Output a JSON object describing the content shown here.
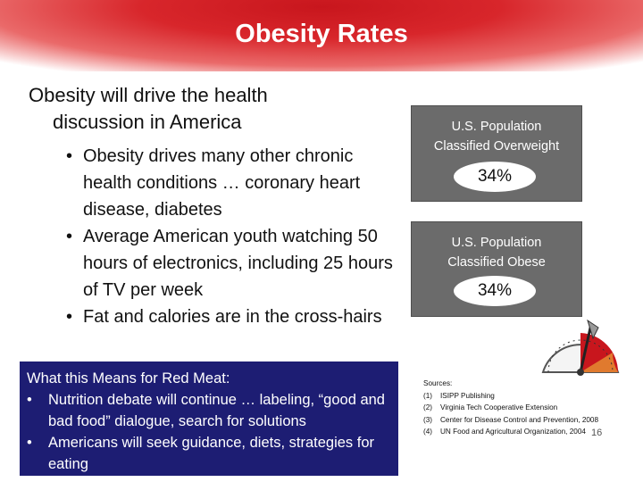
{
  "title": "Obesity Rates",
  "main_point": {
    "line1": "Obesity will drive the health",
    "line2": "discussion in America"
  },
  "bullets": [
    "Obesity drives many other chronic health conditions … coronary heart disease, diabetes",
    "Average American youth watching 50 hours of electronics, including 25 hours of TV per week",
    "Fat and calories are in the cross-hairs"
  ],
  "stats": [
    {
      "label_line1": "U.S. Population",
      "label_line2": "Classified Overweight",
      "value": "34%"
    },
    {
      "label_line1": "U.S. Population",
      "label_line2": "Classified Obese",
      "value": "34%"
    }
  ],
  "red_meat": {
    "title": "What this Means for Red Meat:",
    "items": [
      "Nutrition debate will continue … labeling, “good and bad food” dialogue, search for solutions",
      "Americans will seek guidance, diets, strategies for eating"
    ]
  },
  "sources": {
    "heading": "Sources:",
    "items": [
      {
        "num": "(1)",
        "text": "ISIPP Publishing"
      },
      {
        "num": "(2)",
        "text": "Virginia Tech Cooperative Extension"
      },
      {
        "num": "(3)",
        "text": "Center for Disease Control and Prevention, 2008"
      },
      {
        "num": "(4)",
        "text": "UN Food and Agricultural Organization, 2004"
      }
    ]
  },
  "page_number": "16",
  "colors": {
    "header_red": "#d8262b",
    "stat_box_gray": "#6b6b6b",
    "navy_box": "#1d1d73"
  },
  "icons": {
    "gauge": "scale-gauge-icon"
  }
}
